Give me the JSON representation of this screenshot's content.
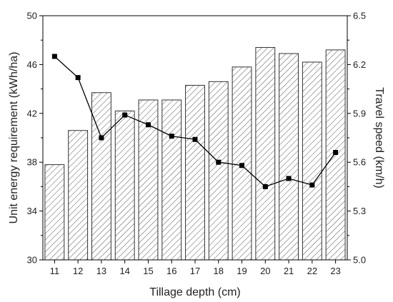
{
  "chart_data": {
    "type": "bar",
    "xlabel": "Tillage depth (cm)",
    "ylabel_left": "Unit energy requirement (kWh/ha)",
    "ylabel_right": "Travel speed (km/h)",
    "categories": [
      "11",
      "12",
      "13",
      "14",
      "15",
      "16",
      "17",
      "18",
      "19",
      "20",
      "21",
      "22",
      "23"
    ],
    "ylim_left": [
      30,
      50
    ],
    "yticks_left": [
      30,
      34,
      38,
      42,
      46,
      50
    ],
    "ylim_right": [
      5.0,
      6.5
    ],
    "yticks_right": [
      "5.0",
      "5.3",
      "5.6",
      "5.9",
      "6.2",
      "6.5"
    ],
    "series": [
      {
        "type": "bar",
        "axis": "left",
        "fill": "diagonal-hatch",
        "values": [
          37.8,
          40.6,
          43.7,
          42.2,
          43.1,
          43.1,
          44.3,
          44.6,
          45.8,
          47.4,
          46.9,
          46.2,
          47.2
        ]
      },
      {
        "type": "line",
        "axis": "right",
        "marker": "square",
        "values": [
          6.25,
          6.12,
          5.75,
          5.89,
          5.83,
          5.76,
          5.74,
          5.6,
          5.58,
          5.45,
          5.5,
          5.46,
          5.66
        ]
      }
    ],
    "grid": false,
    "legend": "none"
  }
}
